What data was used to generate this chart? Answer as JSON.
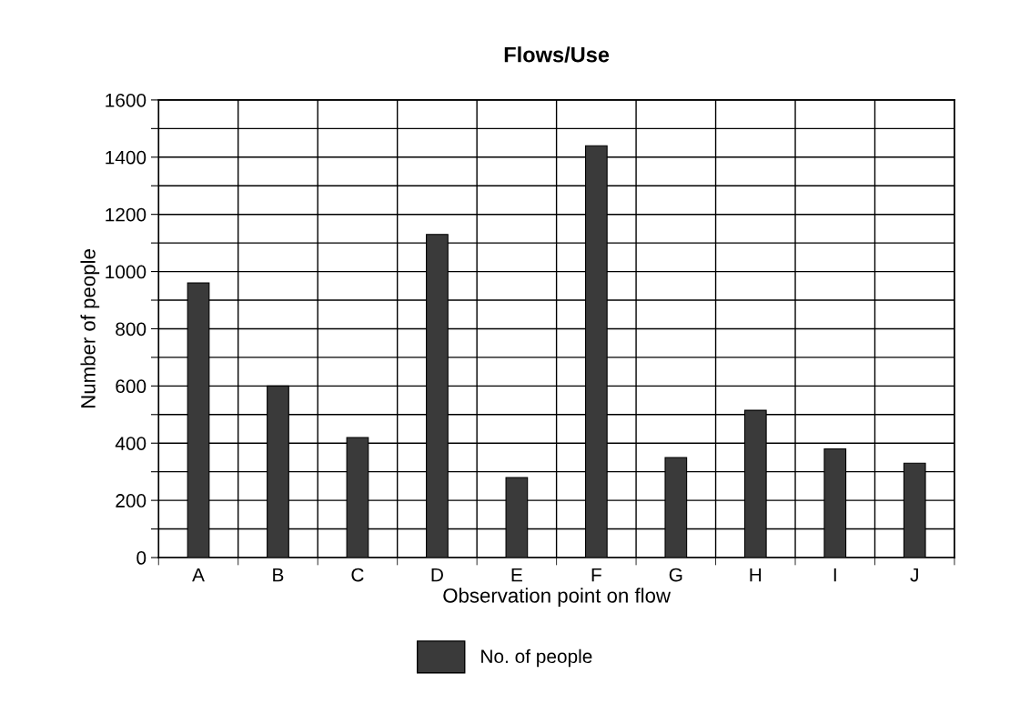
{
  "chart_data": {
    "type": "bar",
    "title": "Flows/Use",
    "xlabel": "Observation point on flow",
    "ylabel": "Number of people",
    "categories": [
      "A",
      "B",
      "C",
      "D",
      "E",
      "F",
      "G",
      "H",
      "I",
      "J"
    ],
    "series": [
      {
        "name": "No. of people",
        "color": "#3a3a3a",
        "values": [
          960,
          600,
          420,
          1130,
          280,
          1440,
          350,
          515,
          380,
          330
        ]
      }
    ],
    "ylim": [
      0,
      1600
    ],
    "yticks": [
      0,
      {
        "value": 100,
        "label": null
      },
      200,
      {
        "value": 300,
        "label": null
      },
      400,
      {
        "value": 500,
        "label": null
      },
      600,
      {
        "value": 700,
        "label": null
      },
      800,
      {
        "value": 900,
        "label": null
      },
      1000,
      {
        "value": 1100,
        "label": null
      },
      1200,
      {
        "value": 1300,
        "label": null
      },
      1400,
      {
        "value": 1500,
        "label": null
      },
      1600
    ],
    "grid": true,
    "legend": "bottom"
  }
}
